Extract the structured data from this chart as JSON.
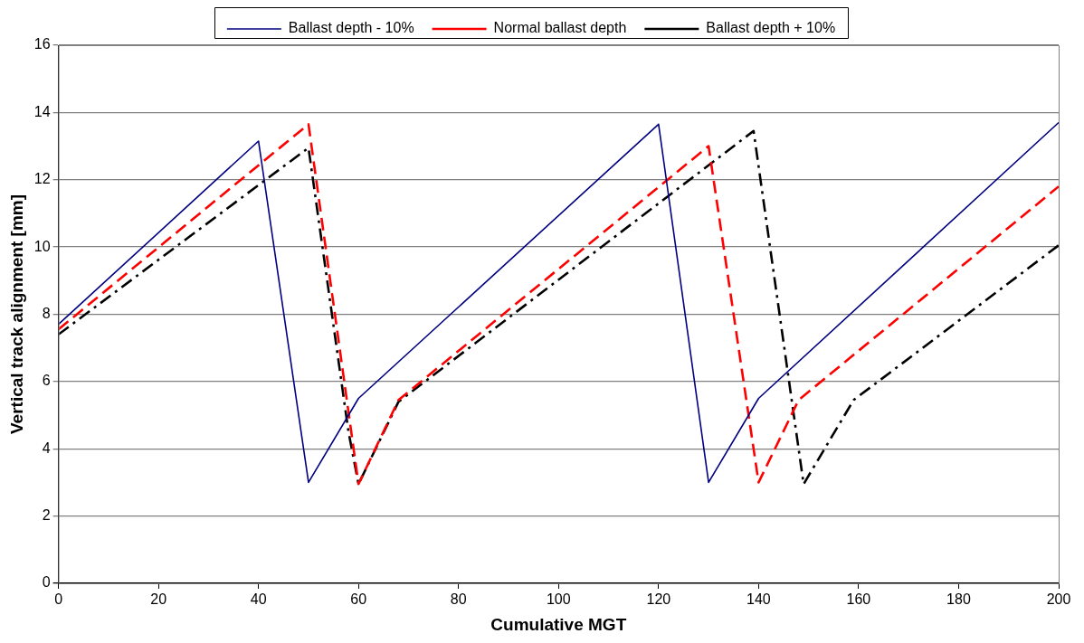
{
  "chart_data": {
    "type": "line",
    "xlabel": "Cumulative MGT",
    "ylabel": "Vertical track alignment [mm]",
    "xlim": [
      0,
      200
    ],
    "xticks": [
      0,
      20,
      40,
      60,
      80,
      100,
      120,
      140,
      160,
      180,
      200
    ],
    "ylim": [
      0,
      16
    ],
    "yticks": [
      0,
      2,
      4,
      6,
      8,
      10,
      12,
      14,
      16
    ],
    "grid": "y",
    "legend": "top",
    "marker": "none",
    "series": [
      {
        "name": "Ballast depth - 10%",
        "color": "#000080",
        "line_style": "solid",
        "x": [
          0,
          40,
          50,
          60,
          120,
          130,
          140,
          200
        ],
        "values": [
          7.7,
          13.15,
          3,
          5.5,
          13.65,
          3,
          5.5,
          13.7
        ]
      },
      {
        "name": "Normal ballast depth",
        "color": "#ff0000",
        "line_style": "dashed",
        "x": [
          0,
          50,
          60,
          68,
          130,
          140,
          148,
          200
        ],
        "values": [
          7.55,
          13.65,
          2.95,
          5.45,
          13.0,
          3,
          5.45,
          11.8
        ]
      },
      {
        "name": "Ballast depth + 10%",
        "color": "#000000",
        "line_style": "dashdot",
        "x": [
          0,
          50,
          58,
          60,
          68,
          139,
          149,
          159,
          200
        ],
        "values": [
          7.4,
          12.95,
          4.5,
          2.95,
          5.4,
          13.45,
          2.95,
          5.45,
          10.05
        ]
      }
    ]
  }
}
